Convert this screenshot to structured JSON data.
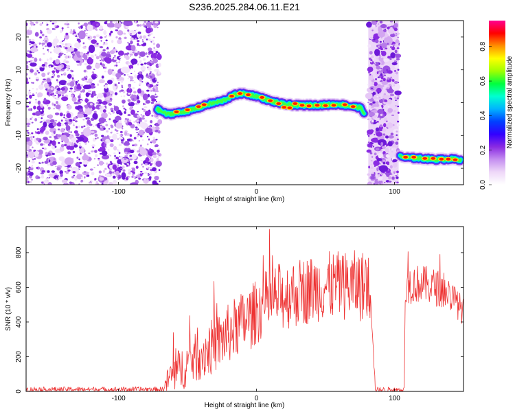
{
  "figure": {
    "title": "S236.2025.284.06.11.E21"
  },
  "chart_data": [
    {
      "type": "heatmap",
      "name": "spectrogram",
      "xlabel": "Height of straight line (km)",
      "ylabel": "Frequency (Hz)",
      "xlim": [
        -167,
        150
      ],
      "ylim": [
        -25,
        25
      ],
      "xticks": [
        -100,
        0,
        100
      ],
      "yticks": [
        20,
        10,
        0,
        -10,
        -20
      ],
      "colorbar": {
        "label": "Normalized spectral amplitude",
        "range": [
          0,
          0.95
        ],
        "ticks": [
          0.0,
          0.2,
          0.4,
          0.6,
          0.8
        ],
        "colors": [
          "#ffffff",
          "#eed8f8",
          "#c58ff0",
          "#8a2be2",
          "#3200ff",
          "#0040ff",
          "#00b4ff",
          "#00ffd0",
          "#00ff40",
          "#a0ff00",
          "#ffff00",
          "#ff9000",
          "#ff0000",
          "#ff0090"
        ]
      },
      "noise_regions": [
        [
          -167,
          -70
        ],
        [
          81,
          103
        ]
      ],
      "ridge_segments": [
        {
          "x": [
            -72,
            -65,
            -55,
            -45,
            -35,
            -25,
            -15,
            -10,
            0,
            10,
            20,
            30,
            40,
            50,
            60,
            70,
            75,
            78
          ],
          "y": [
            -2,
            -3.5,
            -3,
            -2,
            -0.5,
            0.5,
            2.5,
            2.8,
            2,
            0.5,
            -0.5,
            -0.8,
            -0.8,
            -0.7,
            -0.5,
            -1.2,
            -1.5,
            -3
          ]
        },
        {
          "x": [
            104,
            110,
            120,
            130,
            140,
            148
          ],
          "y": [
            -16.5,
            -16.8,
            -17,
            -17.3,
            -17.2,
            -17.4
          ]
        }
      ],
      "strong_points": [
        {
          "x": -58,
          "y": -2.8
        },
        {
          "x": -50,
          "y": -2.2
        },
        {
          "x": -42,
          "y": -1.2
        },
        {
          "x": -38,
          "y": -0.6
        },
        {
          "x": -18,
          "y": 2.0
        },
        {
          "x": -12,
          "y": 2.8
        },
        {
          "x": -6,
          "y": 2.4
        },
        {
          "x": 4,
          "y": 1.6
        },
        {
          "x": 10,
          "y": 0.6
        },
        {
          "x": 16,
          "y": -0.3
        },
        {
          "x": 20,
          "y": -1.4
        },
        {
          "x": 24,
          "y": -1.6
        },
        {
          "x": 28,
          "y": -0.3
        },
        {
          "x": 33,
          "y": -0.8
        },
        {
          "x": 38,
          "y": -1.0
        },
        {
          "x": 44,
          "y": -0.8
        },
        {
          "x": 50,
          "y": -0.9
        },
        {
          "x": 56,
          "y": -0.8
        },
        {
          "x": 64,
          "y": -0.6
        },
        {
          "x": 70,
          "y": -1.2
        },
        {
          "x": 108,
          "y": -16.6
        },
        {
          "x": 114,
          "y": -16.6
        },
        {
          "x": 122,
          "y": -17.0
        },
        {
          "x": 128,
          "y": -17.0
        },
        {
          "x": 134,
          "y": -17.2
        },
        {
          "x": 139,
          "y": -17.2
        },
        {
          "x": 144,
          "y": -17.4
        }
      ]
    },
    {
      "type": "line",
      "name": "snr",
      "xlabel": "Height of straight line (km)",
      "ylabel": "SNR (10 * v/v)",
      "xlim": [
        -167,
        150
      ],
      "ylim": [
        0,
        950
      ],
      "xticks": [
        -100,
        0,
        100
      ],
      "yticks": [
        0,
        200,
        400,
        600,
        800
      ],
      "color": "#ee3333",
      "envelope": {
        "x": [
          -167,
          -110,
          -68,
          -63,
          -55,
          -45,
          -35,
          -25,
          -15,
          -5,
          5,
          15,
          25,
          35,
          45,
          55,
          65,
          75,
          83,
          86,
          88,
          95,
          107,
          108,
          110,
          120,
          130,
          140,
          150
        ],
        "base": [
          12,
          12,
          12,
          80,
          130,
          190,
          240,
          300,
          370,
          420,
          500,
          540,
          560,
          580,
          600,
          610,
          610,
          610,
          600,
          10,
          10,
          10,
          10,
          580,
          620,
          620,
          600,
          560,
          460
        ],
        "spread": [
          14,
          14,
          14,
          100,
          130,
          140,
          160,
          170,
          180,
          190,
          190,
          200,
          200,
          200,
          200,
          200,
          200,
          210,
          200,
          14,
          14,
          14,
          14,
          130,
          120,
          110,
          110,
          100,
          80
        ]
      }
    }
  ]
}
